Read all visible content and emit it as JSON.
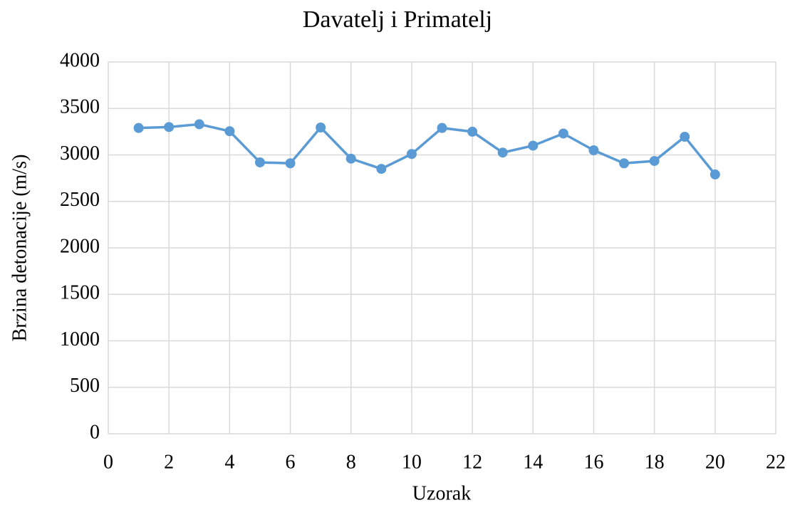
{
  "chart_data": {
    "type": "line",
    "title": "Davatelj  i Primatelj",
    "xlabel": "Uzorak",
    "ylabel": "Brzina detonacije (m/s)",
    "x": [
      1,
      2,
      3,
      4,
      5,
      6,
      7,
      8,
      9,
      10,
      11,
      12,
      13,
      14,
      15,
      16,
      17,
      18,
      19,
      20
    ],
    "values": [
      3290,
      3300,
      3330,
      3255,
      2920,
      2910,
      3295,
      2960,
      2850,
      3010,
      3290,
      3250,
      3025,
      3100,
      3230,
      3050,
      2910,
      2935,
      3195,
      2790
    ],
    "color": "#5b9bd5",
    "xlim": [
      0,
      22
    ],
    "xticks": [
      0,
      2,
      4,
      6,
      8,
      10,
      12,
      14,
      16,
      18,
      20,
      22
    ],
    "ylim": [
      0,
      4000
    ],
    "yticks": [
      0,
      500,
      1000,
      1500,
      2000,
      2500,
      3000,
      3500,
      4000
    ],
    "grid": true
  }
}
